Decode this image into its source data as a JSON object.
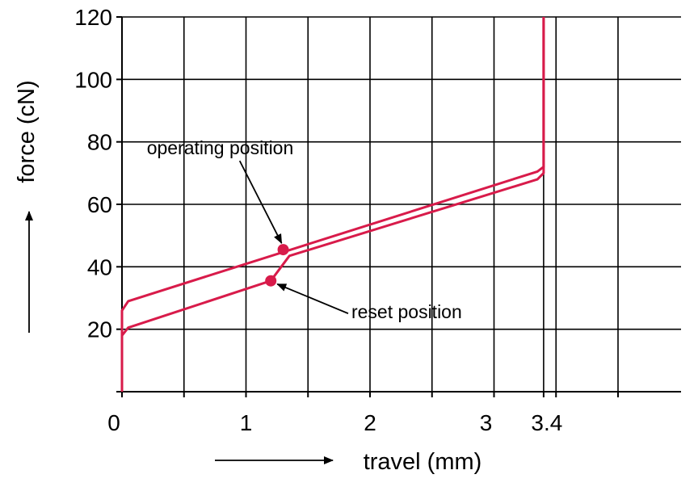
{
  "chart_data": {
    "type": "line",
    "xlabel": "travel (mm)",
    "ylabel": "force (cN)",
    "xlim": [
      0,
      4.5
    ],
    "ylim": [
      0,
      120
    ],
    "x_ticks": [
      0,
      1,
      2,
      3,
      3.4
    ],
    "x_tick_labels": [
      "0",
      "1",
      "2",
      "3",
      "3.4"
    ],
    "x_grid": [
      0.5,
      1,
      1.5,
      2,
      2.5,
      3,
      3.4,
      3.5,
      4
    ],
    "y_ticks": [
      20,
      40,
      60,
      80,
      100,
      120
    ],
    "y_tick_labels": [
      "20",
      "40",
      "60",
      "80",
      "100",
      "120"
    ],
    "grid": true,
    "line_color": "#d81b4a",
    "series": [
      {
        "points": [
          [
            0,
            0
          ],
          [
            0,
            26
          ],
          [
            0.05,
            29
          ],
          [
            3.35,
            70.5
          ],
          [
            3.4,
            72
          ],
          [
            3.4,
            120
          ]
        ]
      },
      {
        "points": [
          [
            0,
            0
          ],
          [
            0,
            18
          ],
          [
            0.05,
            20.5
          ],
          [
            1.2,
            35.5
          ],
          [
            1.35,
            43.5
          ],
          [
            3.35,
            68
          ],
          [
            3.4,
            70
          ],
          [
            3.4,
            120
          ]
        ]
      }
    ],
    "markers": [
      {
        "x": 1.3,
        "y": 45.5
      },
      {
        "x": 1.2,
        "y": 35.5
      }
    ],
    "annotations": [
      {
        "text": "operating position",
        "x": 0.2,
        "y": 76,
        "arrow_to": [
          1.3,
          45.5
        ]
      },
      {
        "text": "reset position",
        "x": 1.85,
        "y": 23.5,
        "arrow_to": [
          1.2,
          35.5
        ]
      }
    ]
  }
}
